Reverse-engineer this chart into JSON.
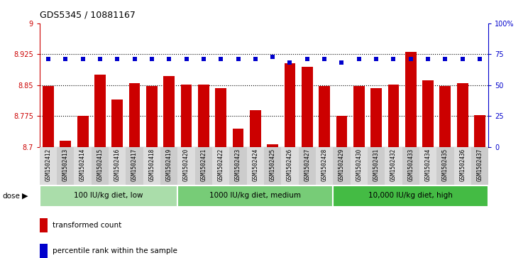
{
  "title": "GDS5345 / 10881167",
  "samples": [
    "GSM1502412",
    "GSM1502413",
    "GSM1502414",
    "GSM1502415",
    "GSM1502416",
    "GSM1502417",
    "GSM1502418",
    "GSM1502419",
    "GSM1502420",
    "GSM1502421",
    "GSM1502422",
    "GSM1502423",
    "GSM1502424",
    "GSM1502425",
    "GSM1502426",
    "GSM1502427",
    "GSM1502428",
    "GSM1502429",
    "GSM1502430",
    "GSM1502431",
    "GSM1502432",
    "GSM1502433",
    "GSM1502434",
    "GSM1502435",
    "GSM1502436",
    "GSM1502437"
  ],
  "bar_values": [
    8.848,
    8.715,
    8.775,
    8.876,
    8.815,
    8.855,
    8.848,
    8.872,
    8.851,
    8.851,
    8.843,
    8.745,
    8.79,
    8.706,
    8.903,
    8.895,
    8.848,
    8.775,
    8.848,
    8.843,
    8.851,
    8.93,
    8.862,
    8.848,
    8.855,
    8.778
  ],
  "percentile_values": [
    71,
    71,
    71,
    71,
    71,
    71,
    71,
    71,
    71,
    71,
    71,
    71,
    71,
    73,
    68,
    71,
    71,
    68,
    71,
    71,
    71,
    71,
    71,
    71,
    71,
    71
  ],
  "bar_color": "#cc0000",
  "percentile_color": "#0000cc",
  "ylim_left": [
    8.7,
    9.0
  ],
  "ylim_right": [
    0,
    100
  ],
  "yticks_left": [
    8.7,
    8.775,
    8.85,
    8.925,
    9.0
  ],
  "yticks_right": [
    0,
    25,
    50,
    75,
    100
  ],
  "ytick_labels_left": [
    "8.7",
    "8.775",
    "8.85",
    "8.925",
    "9"
  ],
  "ytick_labels_right": [
    "0",
    "25",
    "50",
    "75",
    "100%"
  ],
  "hlines": [
    8.775,
    8.85,
    8.925
  ],
  "groups": [
    {
      "label": "100 IU/kg diet, low",
      "start": 0,
      "end": 7
    },
    {
      "label": "1000 IU/kg diet, medium",
      "start": 8,
      "end": 16
    },
    {
      "label": "10,000 IU/kg diet, high",
      "start": 17,
      "end": 25
    }
  ],
  "group_colors": [
    "#aaddaa",
    "#77cc77",
    "#44bb44"
  ],
  "dose_label": "dose",
  "legend_bar_label": "transformed count",
  "legend_dot_label": "percentile rank within the sample"
}
